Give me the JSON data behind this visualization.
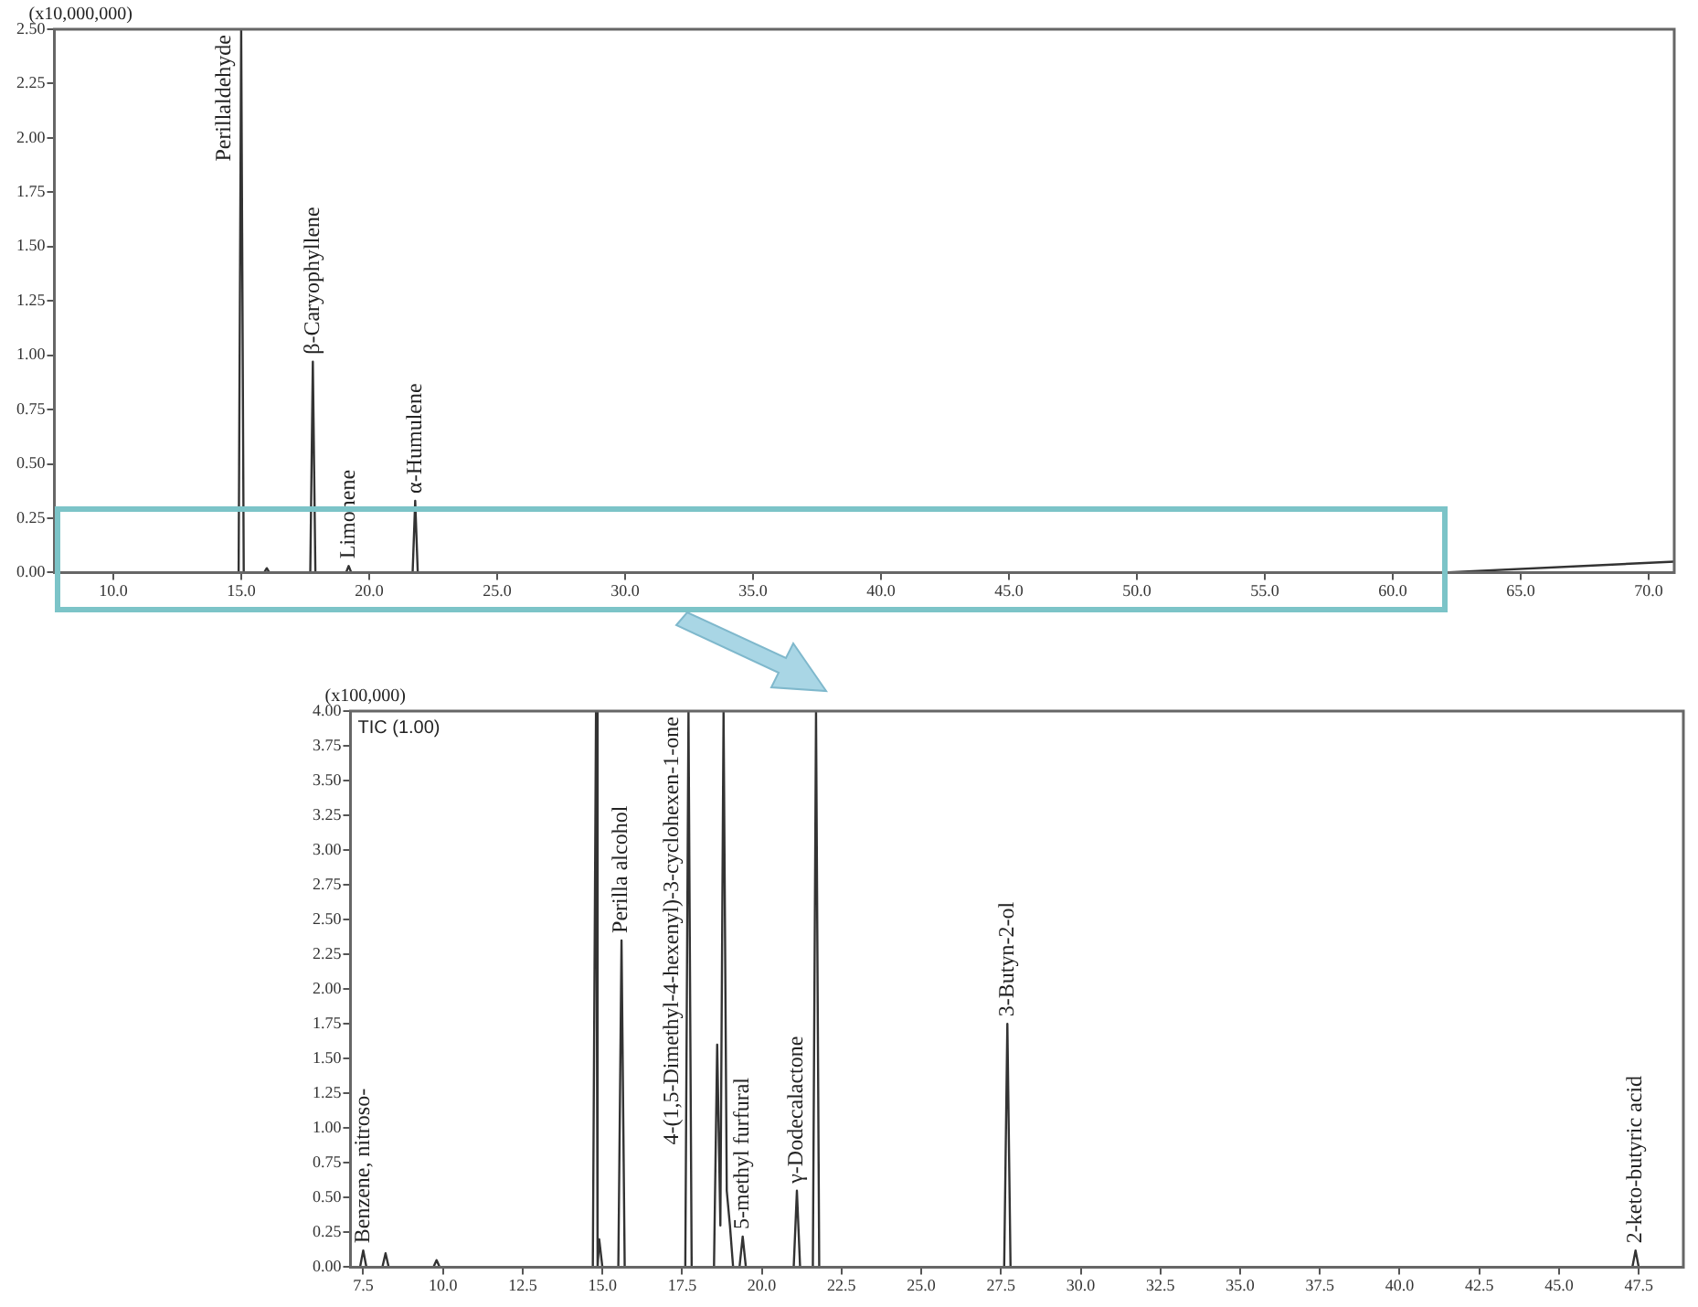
{
  "chart_data": [
    {
      "type": "line",
      "ylabel": "(x10,000,000)",
      "xlim": [
        7.7,
        71
      ],
      "ylim": [
        0,
        2.5
      ],
      "marker": "none",
      "line_style": "solid",
      "xticks": [
        {
          "value": 10,
          "label": "10.0"
        },
        {
          "value": 15,
          "label": "15.0"
        },
        {
          "value": 20,
          "label": "20.0"
        },
        {
          "value": 25,
          "label": "25.0"
        },
        {
          "value": 30,
          "label": "30.0"
        },
        {
          "value": 35,
          "label": "35.0"
        },
        {
          "value": 40,
          "label": "40.0"
        },
        {
          "value": 45,
          "label": "45.0"
        },
        {
          "value": 50,
          "label": "50.0"
        },
        {
          "value": 55,
          "label": "55.0"
        },
        {
          "value": 60,
          "label": "60.0"
        },
        {
          "value": 65,
          "label": "65.0"
        },
        {
          "value": 70,
          "label": "70.0"
        }
      ],
      "yticks": [
        {
          "value": 0,
          "label": "0.00"
        },
        {
          "value": 0.25,
          "label": "0.25"
        },
        {
          "value": 0.5,
          "label": "0.50"
        },
        {
          "value": 0.75,
          "label": "0.75"
        },
        {
          "value": 1,
          "label": "1.00"
        },
        {
          "value": 1.25,
          "label": "1.25"
        },
        {
          "value": 1.5,
          "label": "1.50"
        },
        {
          "value": 1.75,
          "label": "1.75"
        },
        {
          "value": 2,
          "label": "2.00"
        },
        {
          "value": 2.25,
          "label": "2.25"
        },
        {
          "value": 2.5,
          "label": "2.50"
        }
      ],
      "series": [
        {
          "color": "#333333",
          "x": [
            7.7,
            14.9,
            15.0,
            15.1,
            15.9,
            16.0,
            16.1,
            17.7,
            17.8,
            17.9,
            19.1,
            19.2,
            19.3,
            21.7,
            21.8,
            21.9,
            62,
            71
          ],
          "values": [
            0,
            0,
            2.5,
            0,
            0,
            0.02,
            0,
            0,
            0.97,
            0,
            0,
            0.03,
            0,
            0,
            0.33,
            0,
            0,
            0.05
          ]
        }
      ],
      "annotations": [
        {
          "text": "Perillaldehyde",
          "x": 15.0,
          "y": 2.5
        },
        {
          "text": "β-Caryophyllene",
          "x": 17.8,
          "y": 0.97
        },
        {
          "text": "Limonene",
          "x": 19.2,
          "y": 0.03
        },
        {
          "text": "α-Humulene",
          "x": 21.8,
          "y": 0.33
        }
      ]
    },
    {
      "type": "line",
      "ylabel": "(x100,000)",
      "xlim": [
        7.1,
        48.9
      ],
      "ylim": [
        0,
        4
      ],
      "marker": "none",
      "line_style": "solid",
      "xticks": [
        {
          "value": 7.5,
          "label": "7.5"
        },
        {
          "value": 10,
          "label": "10.0"
        },
        {
          "value": 12.5,
          "label": "12.5"
        },
        {
          "value": 15,
          "label": "15.0"
        },
        {
          "value": 17.5,
          "label": "17.5"
        },
        {
          "value": 20,
          "label": "20.0"
        },
        {
          "value": 22.5,
          "label": "22.5"
        },
        {
          "value": 25,
          "label": "25.0"
        },
        {
          "value": 27.5,
          "label": "27.5"
        },
        {
          "value": 30,
          "label": "30.0"
        },
        {
          "value": 32.5,
          "label": "32.5"
        },
        {
          "value": 35,
          "label": "35.0"
        },
        {
          "value": 37.5,
          "label": "37.5"
        },
        {
          "value": 40,
          "label": "40.0"
        },
        {
          "value": 42.5,
          "label": "42.5"
        },
        {
          "value": 45,
          "label": "45.0"
        },
        {
          "value": 47.5,
          "label": "47.5"
        }
      ],
      "yticks": [
        {
          "value": 0,
          "label": "0.00"
        },
        {
          "value": 0.25,
          "label": "0.25"
        },
        {
          "value": 0.5,
          "label": "0.50"
        },
        {
          "value": 0.75,
          "label": "0.75"
        },
        {
          "value": 1,
          "label": "1.00"
        },
        {
          "value": 1.25,
          "label": "1.25"
        },
        {
          "value": 1.5,
          "label": "1.50"
        },
        {
          "value": 1.75,
          "label": "1.75"
        },
        {
          "value": 2,
          "label": "2.00"
        },
        {
          "value": 2.25,
          "label": "2.25"
        },
        {
          "value": 2.5,
          "label": "2.50"
        },
        {
          "value": 2.75,
          "label": "2.75"
        },
        {
          "value": 3,
          "label": "3.00"
        },
        {
          "value": 3.25,
          "label": "3.25"
        },
        {
          "value": 3.5,
          "label": "3.50"
        },
        {
          "value": 3.75,
          "label": "3.75"
        },
        {
          "value": 4,
          "label": "4.00"
        }
      ],
      "series": [
        {
          "color": "#333333",
          "x": [
            7.1,
            7.4,
            7.5,
            7.6,
            8.1,
            8.2,
            8.3,
            9.7,
            9.8,
            9.9,
            14.7,
            14.8,
            14.85,
            14.9,
            15.0,
            15.5,
            15.6,
            15.7,
            17.6,
            17.7,
            17.8,
            18.5,
            18.6,
            18.7,
            18.8,
            18.9,
            19.0,
            19.1,
            19.3,
            19.4,
            19.5,
            21.0,
            21.1,
            21.2,
            21.6,
            21.7,
            21.8,
            27.6,
            27.7,
            27.8,
            47.3,
            47.4,
            47.5,
            48.9
          ],
          "values": [
            0,
            0,
            0.12,
            0,
            0,
            0.1,
            0,
            0,
            0.05,
            0,
            0,
            4.0,
            0,
            0.2,
            0,
            0,
            2.35,
            0,
            0,
            4.0,
            0,
            0,
            1.6,
            0.3,
            4.0,
            0.55,
            0.3,
            0,
            0,
            0.22,
            0,
            0,
            0.55,
            0,
            0,
            4.0,
            0,
            0,
            1.75,
            0,
            0,
            0.12,
            0,
            0
          ]
        }
      ],
      "annotations": [
        "TIC (1.00)",
        {
          "text": "Benzene, nitroso-",
          "x": 7.5,
          "y": 0.12
        },
        {
          "text": "Perilla alcohol",
          "x": 15.6,
          "y": 2.35
        },
        {
          "text": "4-(1,5-Dimethyl-4-hexenyl)-3-cyclohexen-1-one",
          "x": 17.7,
          "y": 4.0
        },
        {
          "text": "5-methyl furfural",
          "x": 19.4,
          "y": 0.22
        },
        {
          "text": "γ-Dodecalactone",
          "x": 21.1,
          "y": 0.55
        },
        {
          "text": "3-Butyn-2-ol",
          "x": 27.7,
          "y": 1.75
        },
        {
          "text": "2-keto-butyric acid",
          "x": 47.4,
          "y": 0.12
        }
      ]
    }
  ]
}
